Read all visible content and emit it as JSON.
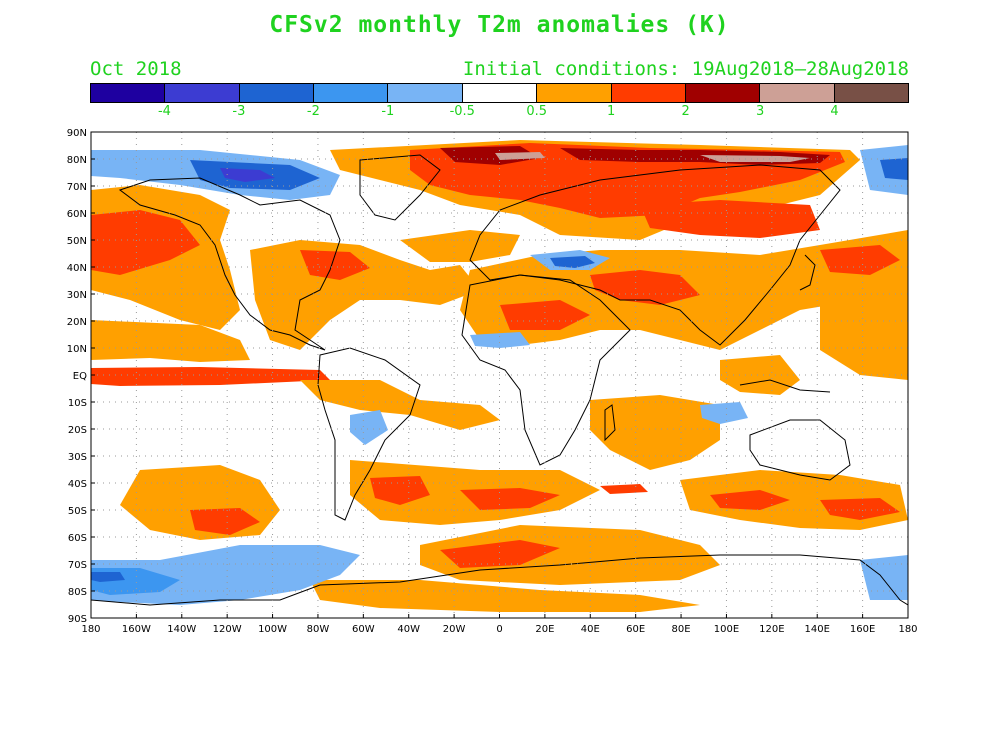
{
  "title": "CFSv2 monthly T2m anomalies (K)",
  "month": "Oct 2018",
  "initial_conditions": "Initial conditions: 19Aug2018–28Aug2018",
  "colors": {
    "title_green": "#1fd21f",
    "ocean_white": "#ffffff",
    "grid_dots": "#9a9a9a"
  },
  "colorbar": {
    "colors": [
      "#1e00a0",
      "#3c3cd2",
      "#1e64d2",
      "#3c96f0",
      "#78b4f5",
      "#ffffff",
      "#ffa000",
      "#ff3c00",
      "#a00000",
      "#cda096",
      "#785046"
    ],
    "labels": [
      "-4",
      "-3",
      "-2",
      "-1",
      "-0.5",
      "0.5",
      "1",
      "2",
      "3",
      "4"
    ]
  },
  "map": {
    "lat_labels": [
      "90N",
      "80N",
      "70N",
      "60N",
      "50N",
      "40N",
      "30N",
      "20N",
      "10N",
      "EQ",
      "10S",
      "20S",
      "30S",
      "40S",
      "50S",
      "60S",
      "70S",
      "80S",
      "90S"
    ],
    "lon_labels": [
      "180",
      "160W",
      "140W",
      "120W",
      "100W",
      "80W",
      "60W",
      "40W",
      "20W",
      "0",
      "20E",
      "40E",
      "60E",
      "80E",
      "100E",
      "120E",
      "140E",
      "160E",
      "180"
    ]
  }
}
